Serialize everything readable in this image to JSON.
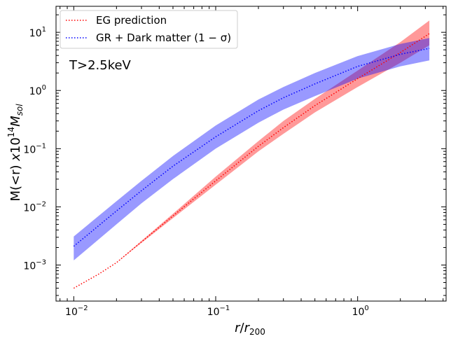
{
  "chart_data": {
    "type": "line",
    "xscale": "log",
    "yscale": "log",
    "xlim": [
      0.0075,
      4.2
    ],
    "ylim": [
      0.00024,
      28
    ],
    "xticks": [
      {
        "value": 0.01,
        "base": "10",
        "exp": "−2"
      },
      {
        "value": 0.1,
        "base": "10",
        "exp": "−1"
      },
      {
        "value": 1,
        "base": "10",
        "exp": "0"
      }
    ],
    "yticks": [
      {
        "value": 0.001,
        "base": "10",
        "exp": "−3"
      },
      {
        "value": 0.01,
        "base": "10",
        "exp": "−2"
      },
      {
        "value": 0.1,
        "base": "10",
        "exp": "−1"
      },
      {
        "value": 1,
        "base": "10",
        "exp": "0"
      },
      {
        "value": 10,
        "base": "10",
        "exp": "1"
      }
    ],
    "xlabel": "r/r200",
    "ylabel": "M(<r) x10^14 M_sol",
    "annotation": "T>2.5keV",
    "series": [
      {
        "name": "EG prediction",
        "legend_label": "EG prediction",
        "color": "#ff0000",
        "band_color": "#ff0000",
        "style": "dotted",
        "x": [
          0.01,
          0.015,
          0.02,
          0.03,
          0.05,
          0.1,
          0.2,
          0.3,
          0.5,
          1.0,
          2.0,
          3.2
        ],
        "y": [
          0.0004,
          0.0007,
          0.0011,
          0.0025,
          0.007,
          0.028,
          0.11,
          0.23,
          0.55,
          1.6,
          4.5,
          9.5
        ],
        "band_lower": [
          0.0004,
          0.0007,
          0.0011,
          0.0024,
          0.0064,
          0.024,
          0.09,
          0.18,
          0.42,
          1.15,
          3.0,
          6.0
        ],
        "band_upper": [
          0.0004,
          0.0007,
          0.0011,
          0.0026,
          0.0076,
          0.033,
          0.135,
          0.3,
          0.72,
          2.2,
          6.8,
          16
        ]
      },
      {
        "name": "GR + Dark matter",
        "legend_label": "GR + Dark matter (1 − σ)",
        "color": "#0000ff",
        "band_color": "#0000ff",
        "style": "dotted",
        "x": [
          0.01,
          0.02,
          0.03,
          0.05,
          0.1,
          0.2,
          0.3,
          0.5,
          1.0,
          2.0,
          3.2
        ],
        "y": [
          0.0021,
          0.0085,
          0.019,
          0.05,
          0.16,
          0.45,
          0.75,
          1.3,
          2.6,
          4.2,
          5.3
        ],
        "band_lower": [
          0.0012,
          0.005,
          0.0115,
          0.03,
          0.1,
          0.28,
          0.47,
          0.8,
          1.6,
          2.6,
          3.3
        ],
        "band_upper": [
          0.0031,
          0.0125,
          0.028,
          0.075,
          0.25,
          0.7,
          1.15,
          2.0,
          3.9,
          6.3,
          8.0
        ]
      }
    ]
  }
}
